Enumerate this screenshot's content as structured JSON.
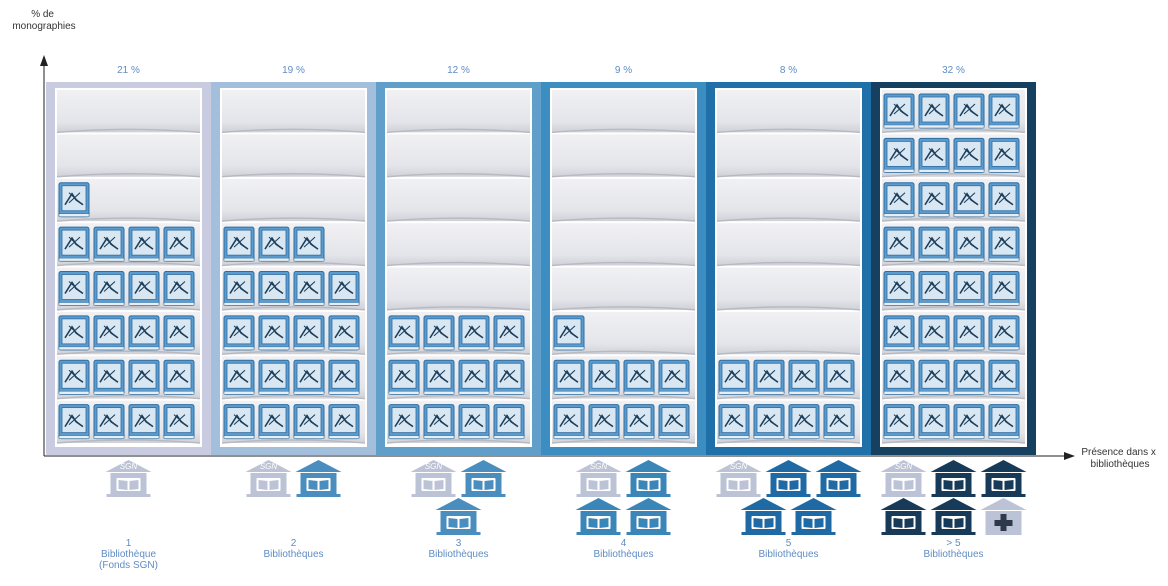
{
  "chart_data": {
    "type": "bar",
    "ylabel": "% de monographies",
    "xlabel": "Présence dans x bibliothèques",
    "categories": [
      {
        "count": "1",
        "label": "Bibliothèque",
        "sub": "(Fonds SGN)"
      },
      {
        "count": "2",
        "label": "Bibliothèques",
        "sub": ""
      },
      {
        "count": "3",
        "label": "Bibliothèques",
        "sub": ""
      },
      {
        "count": "4",
        "label": "Bibliothèques",
        "sub": ""
      },
      {
        "count": "5",
        "label": "Bibliothèques",
        "sub": ""
      },
      {
        "count": "> 5",
        "label": "Bibliothèques",
        "sub": ""
      }
    ],
    "values": [
      21,
      19,
      12,
      9,
      8,
      32
    ],
    "value_labels": [
      "21 %",
      "19 %",
      "12 %",
      "9 %",
      "8 %",
      "32 %"
    ],
    "books_per_column": [
      21,
      19,
      12,
      9,
      8,
      32
    ],
    "library_icons": [
      {
        "sgn": 1,
        "others": 0,
        "extra": false
      },
      {
        "sgn": 1,
        "others": 1,
        "extra": false
      },
      {
        "sgn": 1,
        "others": 2,
        "extra": false
      },
      {
        "sgn": 1,
        "others": 3,
        "extra": false
      },
      {
        "sgn": 1,
        "others": 4,
        "extra": false
      },
      {
        "sgn": 1,
        "others": 4,
        "extra": true
      }
    ],
    "sgn_label": "SGN",
    "column_colors": [
      "#c9cbe0",
      "#a3bfdc",
      "#5f9fca",
      "#3c8dc2",
      "#1f6fa8",
      "#16405f"
    ],
    "icon_colors": [
      "#3e7fb4",
      "#4a8dbf",
      "#4a8dbf",
      "#3a86b9",
      "#1f6aa5",
      "#163a58"
    ],
    "book_color": "#5a9bd0",
    "sgn_icon_color": "#bdc3d6"
  }
}
